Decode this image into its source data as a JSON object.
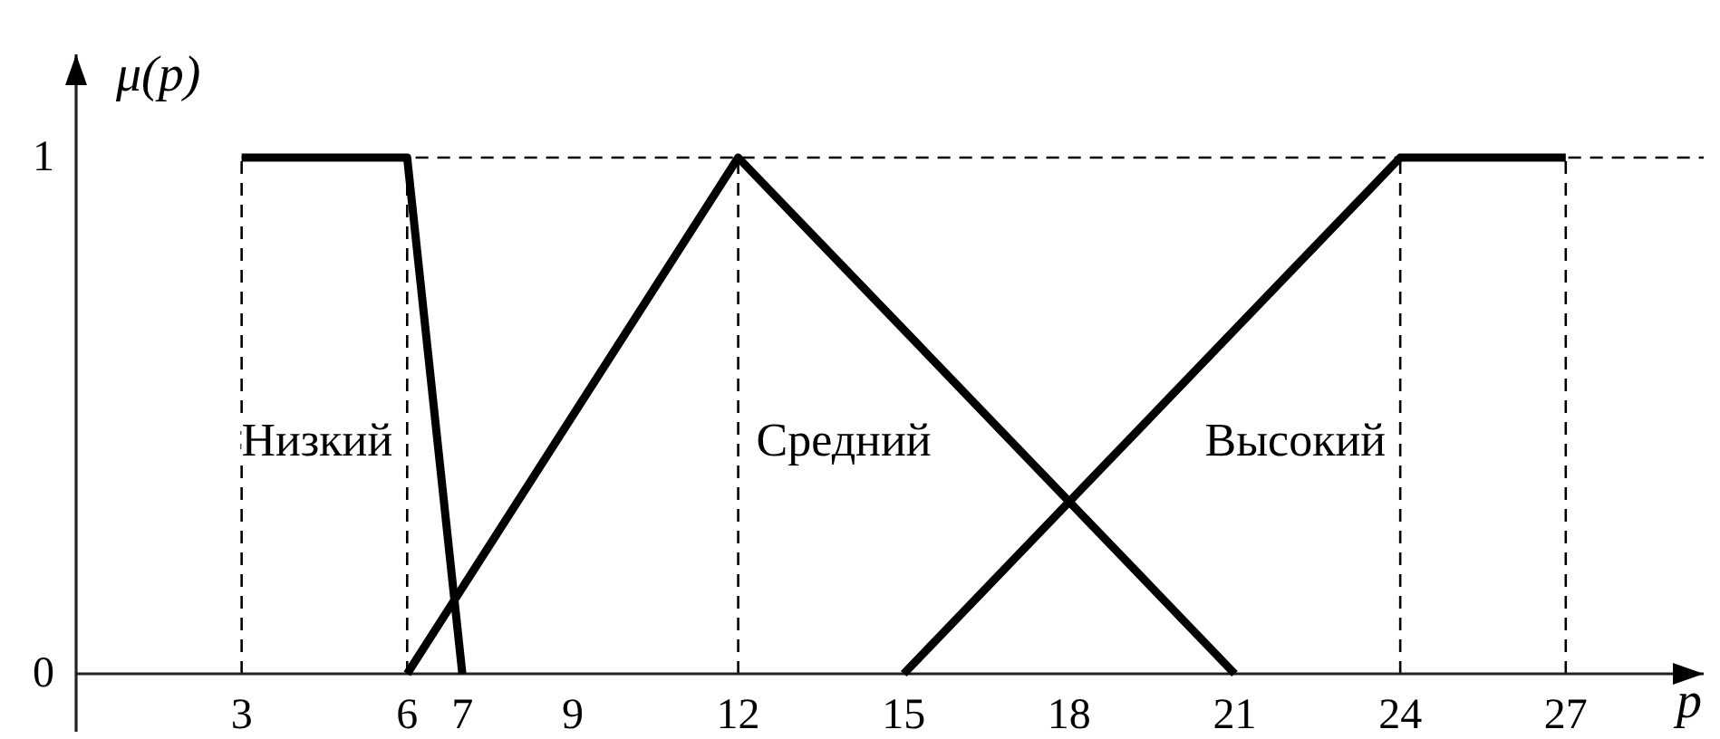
{
  "chart_data": {
    "type": "line",
    "xlabel": "p",
    "ylabel": "μ(p)",
    "series": [
      {
        "name": "Низкий",
        "color": "#000000",
        "x": [
          3,
          6,
          7
        ],
        "values": [
          1,
          1,
          0
        ]
      },
      {
        "name": "Средний",
        "color": "#000000",
        "x": [
          6,
          12,
          21
        ],
        "values": [
          0,
          1,
          0
        ]
      },
      {
        "name": "Высокий",
        "color": "#000000",
        "x": [
          15,
          24,
          27
        ],
        "values": [
          0,
          1,
          1
        ]
      }
    ],
    "xlim": [
      0,
      29.5
    ],
    "xticks": [
      3,
      6,
      7,
      9,
      12,
      15,
      18,
      21,
      24,
      27
    ],
    "ylim": [
      0,
      1.2
    ],
    "yticks": [
      0,
      1
    ],
    "line_style": "solid",
    "ref_lines": [
      {
        "axis": "y",
        "value": 1,
        "color": "#000000",
        "line_style": "dashed"
      },
      {
        "axis": "x",
        "value": 3,
        "color": "#000000",
        "line_style": "dashed"
      },
      {
        "axis": "x",
        "value": 6,
        "color": "#000000",
        "line_style": "dashed"
      },
      {
        "axis": "x",
        "value": 12,
        "color": "#000000",
        "line_style": "dashed"
      },
      {
        "axis": "x",
        "value": 24,
        "color": "#000000",
        "line_style": "dashed"
      },
      {
        "axis": "x",
        "value": 27,
        "color": "#000000",
        "line_style": "dashed"
      }
    ]
  }
}
